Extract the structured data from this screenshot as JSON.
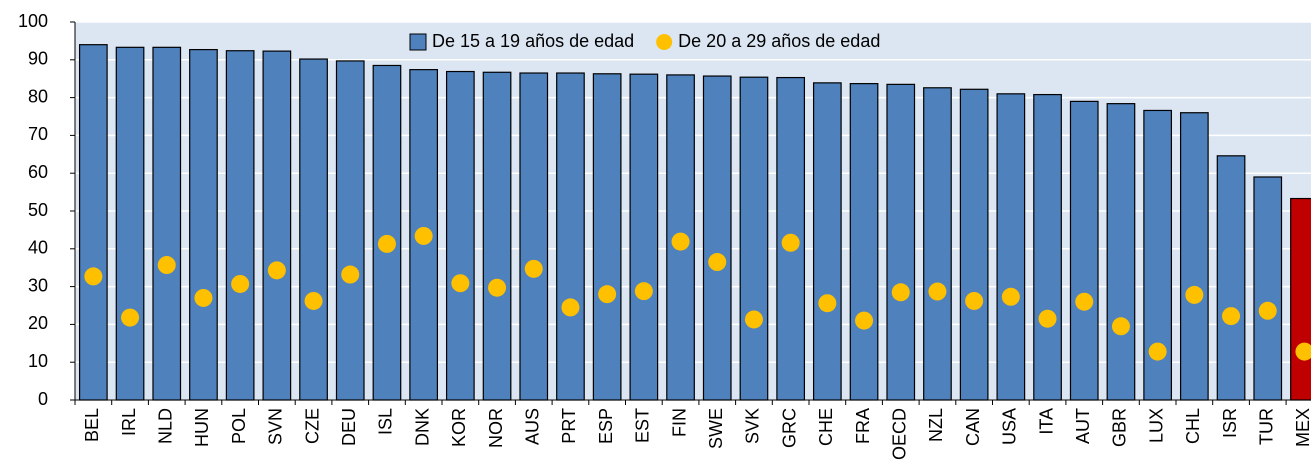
{
  "chart_data": {
    "type": "bar",
    "categories": [
      "BEL",
      "IRL",
      "NLD",
      "HUN",
      "POL",
      "SVN",
      "CZE",
      "DEU",
      "ISL",
      "DNK",
      "KOR",
      "NOR",
      "AUS",
      "PRT",
      "ESP",
      "EST",
      "FIN",
      "SWE",
      "SVK",
      "GRC",
      "CHE",
      "FRA",
      "OECD",
      "NZL",
      "CAN",
      "USA",
      "ITA",
      "AUT",
      "GBR",
      "LUX",
      "CHL",
      "ISR",
      "TUR",
      "MEX"
    ],
    "series": [
      {
        "name": "De 15 a 19 años de edad",
        "mark": "bar",
        "color": "#4f81bd",
        "bar_colors": [
          "#4f81bd",
          "#4f81bd",
          "#4f81bd",
          "#4f81bd",
          "#4f81bd",
          "#4f81bd",
          "#4f81bd",
          "#4f81bd",
          "#4f81bd",
          "#4f81bd",
          "#4f81bd",
          "#4f81bd",
          "#4f81bd",
          "#4f81bd",
          "#4f81bd",
          "#4f81bd",
          "#4f81bd",
          "#4f81bd",
          "#4f81bd",
          "#4f81bd",
          "#4f81bd",
          "#4f81bd",
          "#4f81bd",
          "#4f81bd",
          "#4f81bd",
          "#4f81bd",
          "#4f81bd",
          "#4f81bd",
          "#4f81bd",
          "#4f81bd",
          "#4f81bd",
          "#4f81bd",
          "#4f81bd",
          "#c00000"
        ],
        "values": [
          94,
          93.3,
          93.3,
          92.7,
          92.4,
          92.3,
          90.2,
          89.7,
          88.5,
          87.4,
          86.9,
          86.7,
          86.5,
          86.5,
          86.3,
          86.2,
          86,
          85.7,
          85.4,
          85.3,
          83.9,
          83.7,
          83.5,
          82.6,
          82.2,
          81,
          80.8,
          79,
          78.4,
          76.6,
          76,
          64.6,
          59,
          53.3
        ]
      },
      {
        "name": "De 20 a 29 años de edad",
        "mark": "dot",
        "color": "#ffc000",
        "values": [
          32.7,
          21.8,
          35.7,
          27,
          30.7,
          34.3,
          26.2,
          33.2,
          41.3,
          43.4,
          30.9,
          29.7,
          34.7,
          24.5,
          28,
          28.8,
          41.9,
          36.5,
          21.3,
          41.6,
          25.6,
          21,
          28.5,
          28.7,
          26.2,
          27.3,
          21.5,
          26,
          19.5,
          12.8,
          27.8,
          22.2,
          23.6,
          12.8
        ]
      }
    ],
    "ylim": [
      0,
      100
    ],
    "yticks": [
      0,
      10,
      20,
      30,
      40,
      50,
      60,
      70,
      80,
      90,
      100
    ],
    "grid": true,
    "plot_background": "#dce6f2",
    "legend": "top"
  }
}
